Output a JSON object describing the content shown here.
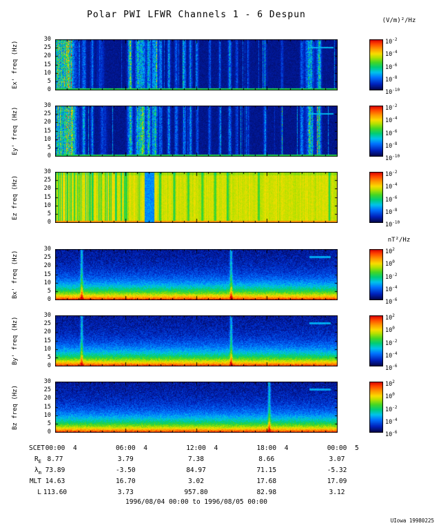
{
  "page": {
    "credit": "UIowa 19980225"
  },
  "chart_data": {
    "type": "heatmap",
    "title": "Polar PWI LFWR Channels 1 - 6 Despun",
    "time_axis": {
      "scet_label": "SCET",
      "tick_labels": [
        "00:00",
        "06:00",
        "12:00",
        "18:00",
        "00:00"
      ],
      "day_numbers": [
        "4",
        "4",
        "4",
        "4",
        "5"
      ],
      "minor_tick_hours": 1,
      "range_label": "1996/08/04 00:00 to 1996/08/05 00:00"
    },
    "freq_axis": {
      "ticks": [
        "0",
        "5",
        "10",
        "15",
        "20",
        "25",
        "30"
      ],
      "min": 0,
      "max": 30
    },
    "colorbar_electric": {
      "unit": "(V/m)²/Hz",
      "tick_exponents": [
        -2,
        -4,
        -6,
        -8,
        -10
      ]
    },
    "colorbar_magnetic": {
      "unit": "nT²/Hz",
      "tick_exponents": [
        2,
        0,
        -2,
        -4,
        -6
      ]
    },
    "panels": [
      {
        "id": "ex",
        "axis_label": "Ex' freq (Hz)",
        "group": "electric",
        "seed": 3,
        "features": {
          "baseline": 0.5,
          "dash": [
            0.845,
            0.9,
            0.985
          ],
          "streaks": [
            [
              0.012,
              9,
              0.5
            ],
            [
              0.05,
              6,
              0.55
            ],
            [
              0.1,
              2,
              0.3
            ],
            [
              0.13,
              1.5,
              0.22
            ],
            [
              0.16,
              3,
              0.15
            ],
            [
              0.265,
              2.5,
              0.5
            ],
            [
              0.29,
              2,
              0.42
            ],
            [
              0.308,
              3,
              0.55
            ],
            [
              0.33,
              2,
              0.38
            ],
            [
              0.352,
              2.5,
              0.5
            ],
            [
              0.372,
              1.5,
              0.32
            ],
            [
              0.402,
              1.5,
              0.3
            ],
            [
              0.428,
              1.5,
              0.24
            ],
            [
              0.456,
              1.5,
              0.34
            ],
            [
              0.478,
              1.5,
              0.28
            ],
            [
              0.502,
              1.2,
              0.24
            ],
            [
              0.546,
              1.2,
              0.2
            ],
            [
              0.582,
              1.2,
              0.2
            ],
            [
              0.617,
              1.5,
              0.3
            ],
            [
              0.642,
              1.2,
              0.2
            ],
            [
              0.682,
              1.2,
              0.18
            ],
            [
              0.742,
              1.5,
              0.26
            ],
            [
              0.802,
              1.2,
              0.16
            ],
            [
              0.872,
              1.5,
              0.28
            ],
            [
              0.9,
              3.5,
              0.52
            ],
            [
              0.932,
              2.2,
              0.42
            ]
          ]
        }
      },
      {
        "id": "ey",
        "axis_label": "Ey' freq (Hz)",
        "group": "electric",
        "seed": 7,
        "features": {
          "baseline": 0.5,
          "dash": [
            0.845,
            0.9,
            0.985
          ],
          "streaks": [
            [
              0.015,
              10,
              0.55
            ],
            [
              0.055,
              6,
              0.5
            ],
            [
              0.1,
              2,
              0.32
            ],
            [
              0.13,
              1.5,
              0.2
            ],
            [
              0.17,
              3,
              0.16
            ],
            [
              0.265,
              2.5,
              0.48
            ],
            [
              0.29,
              2,
              0.44
            ],
            [
              0.308,
              3,
              0.55
            ],
            [
              0.33,
              2,
              0.4
            ],
            [
              0.352,
              2.5,
              0.48
            ],
            [
              0.372,
              1.5,
              0.3
            ],
            [
              0.402,
              1.5,
              0.3
            ],
            [
              0.428,
              1.5,
              0.26
            ],
            [
              0.456,
              1.5,
              0.32
            ],
            [
              0.478,
              1.5,
              0.28
            ],
            [
              0.502,
              1.2,
              0.24
            ],
            [
              0.546,
              1.2,
              0.22
            ],
            [
              0.582,
              1.2,
              0.2
            ],
            [
              0.617,
              1.5,
              0.3
            ],
            [
              0.642,
              1.2,
              0.2
            ],
            [
              0.682,
              1.2,
              0.18
            ],
            [
              0.742,
              1.5,
              0.26
            ],
            [
              0.802,
              1.2,
              0.16
            ],
            [
              0.872,
              1.5,
              0.3
            ],
            [
              0.9,
              3.5,
              0.5
            ],
            [
              0.932,
              2.2,
              0.44
            ]
          ]
        }
      },
      {
        "id": "ez",
        "axis_label": "Ez freq (Hz)",
        "group": "electric-bright",
        "seed": 11,
        "features": {
          "baseline": 0.8,
          "striped_until": 0.3,
          "blue_band": [
            0.315,
            0.35
          ],
          "green_lines": [
            0.37,
            0.42,
            0.47,
            0.52,
            0.565,
            0.61,
            0.72,
            0.97
          ]
        }
      },
      {
        "id": "bx",
        "axis_label": "Bx' freq (Hz)",
        "group": "magnetic",
        "seed": 13,
        "features": {
          "streaks": [
            0.093,
            0.622
          ],
          "dash": [
            0.85,
            0.9,
            0.975
          ]
        }
      },
      {
        "id": "by",
        "axis_label": "By' freq (Hz)",
        "group": "magnetic",
        "seed": 17,
        "features": {
          "streaks": [
            0.093,
            0.622
          ],
          "dash": [
            0.85,
            0.9,
            0.975
          ]
        }
      },
      {
        "id": "bz",
        "axis_label": "Bz freq (Hz)",
        "group": "magnetic",
        "seed": 23,
        "features": {
          "streaks": [
            0.757
          ],
          "dash": [
            0.85,
            0.9,
            0.975
          ]
        }
      }
    ],
    "ephemeris": {
      "rows": [
        {
          "label": "R",
          "sub": "E",
          "values": [
            "8.77",
            "3.79",
            "7.38",
            "8.66",
            "3.07"
          ]
        },
        {
          "label": "λ",
          "sub": "m",
          "values": [
            "73.89",
            "-3.50",
            "84.97",
            "71.15",
            "-5.32"
          ]
        },
        {
          "label": "MLT",
          "sub": "",
          "values": [
            "14.63",
            "16.70",
            "3.02",
            "17.68",
            "17.09"
          ]
        },
        {
          "label": "L",
          "sub": "",
          "values": [
            "113.60",
            "3.73",
            "957.80",
            "82.98",
            "3.12"
          ]
        }
      ]
    }
  }
}
